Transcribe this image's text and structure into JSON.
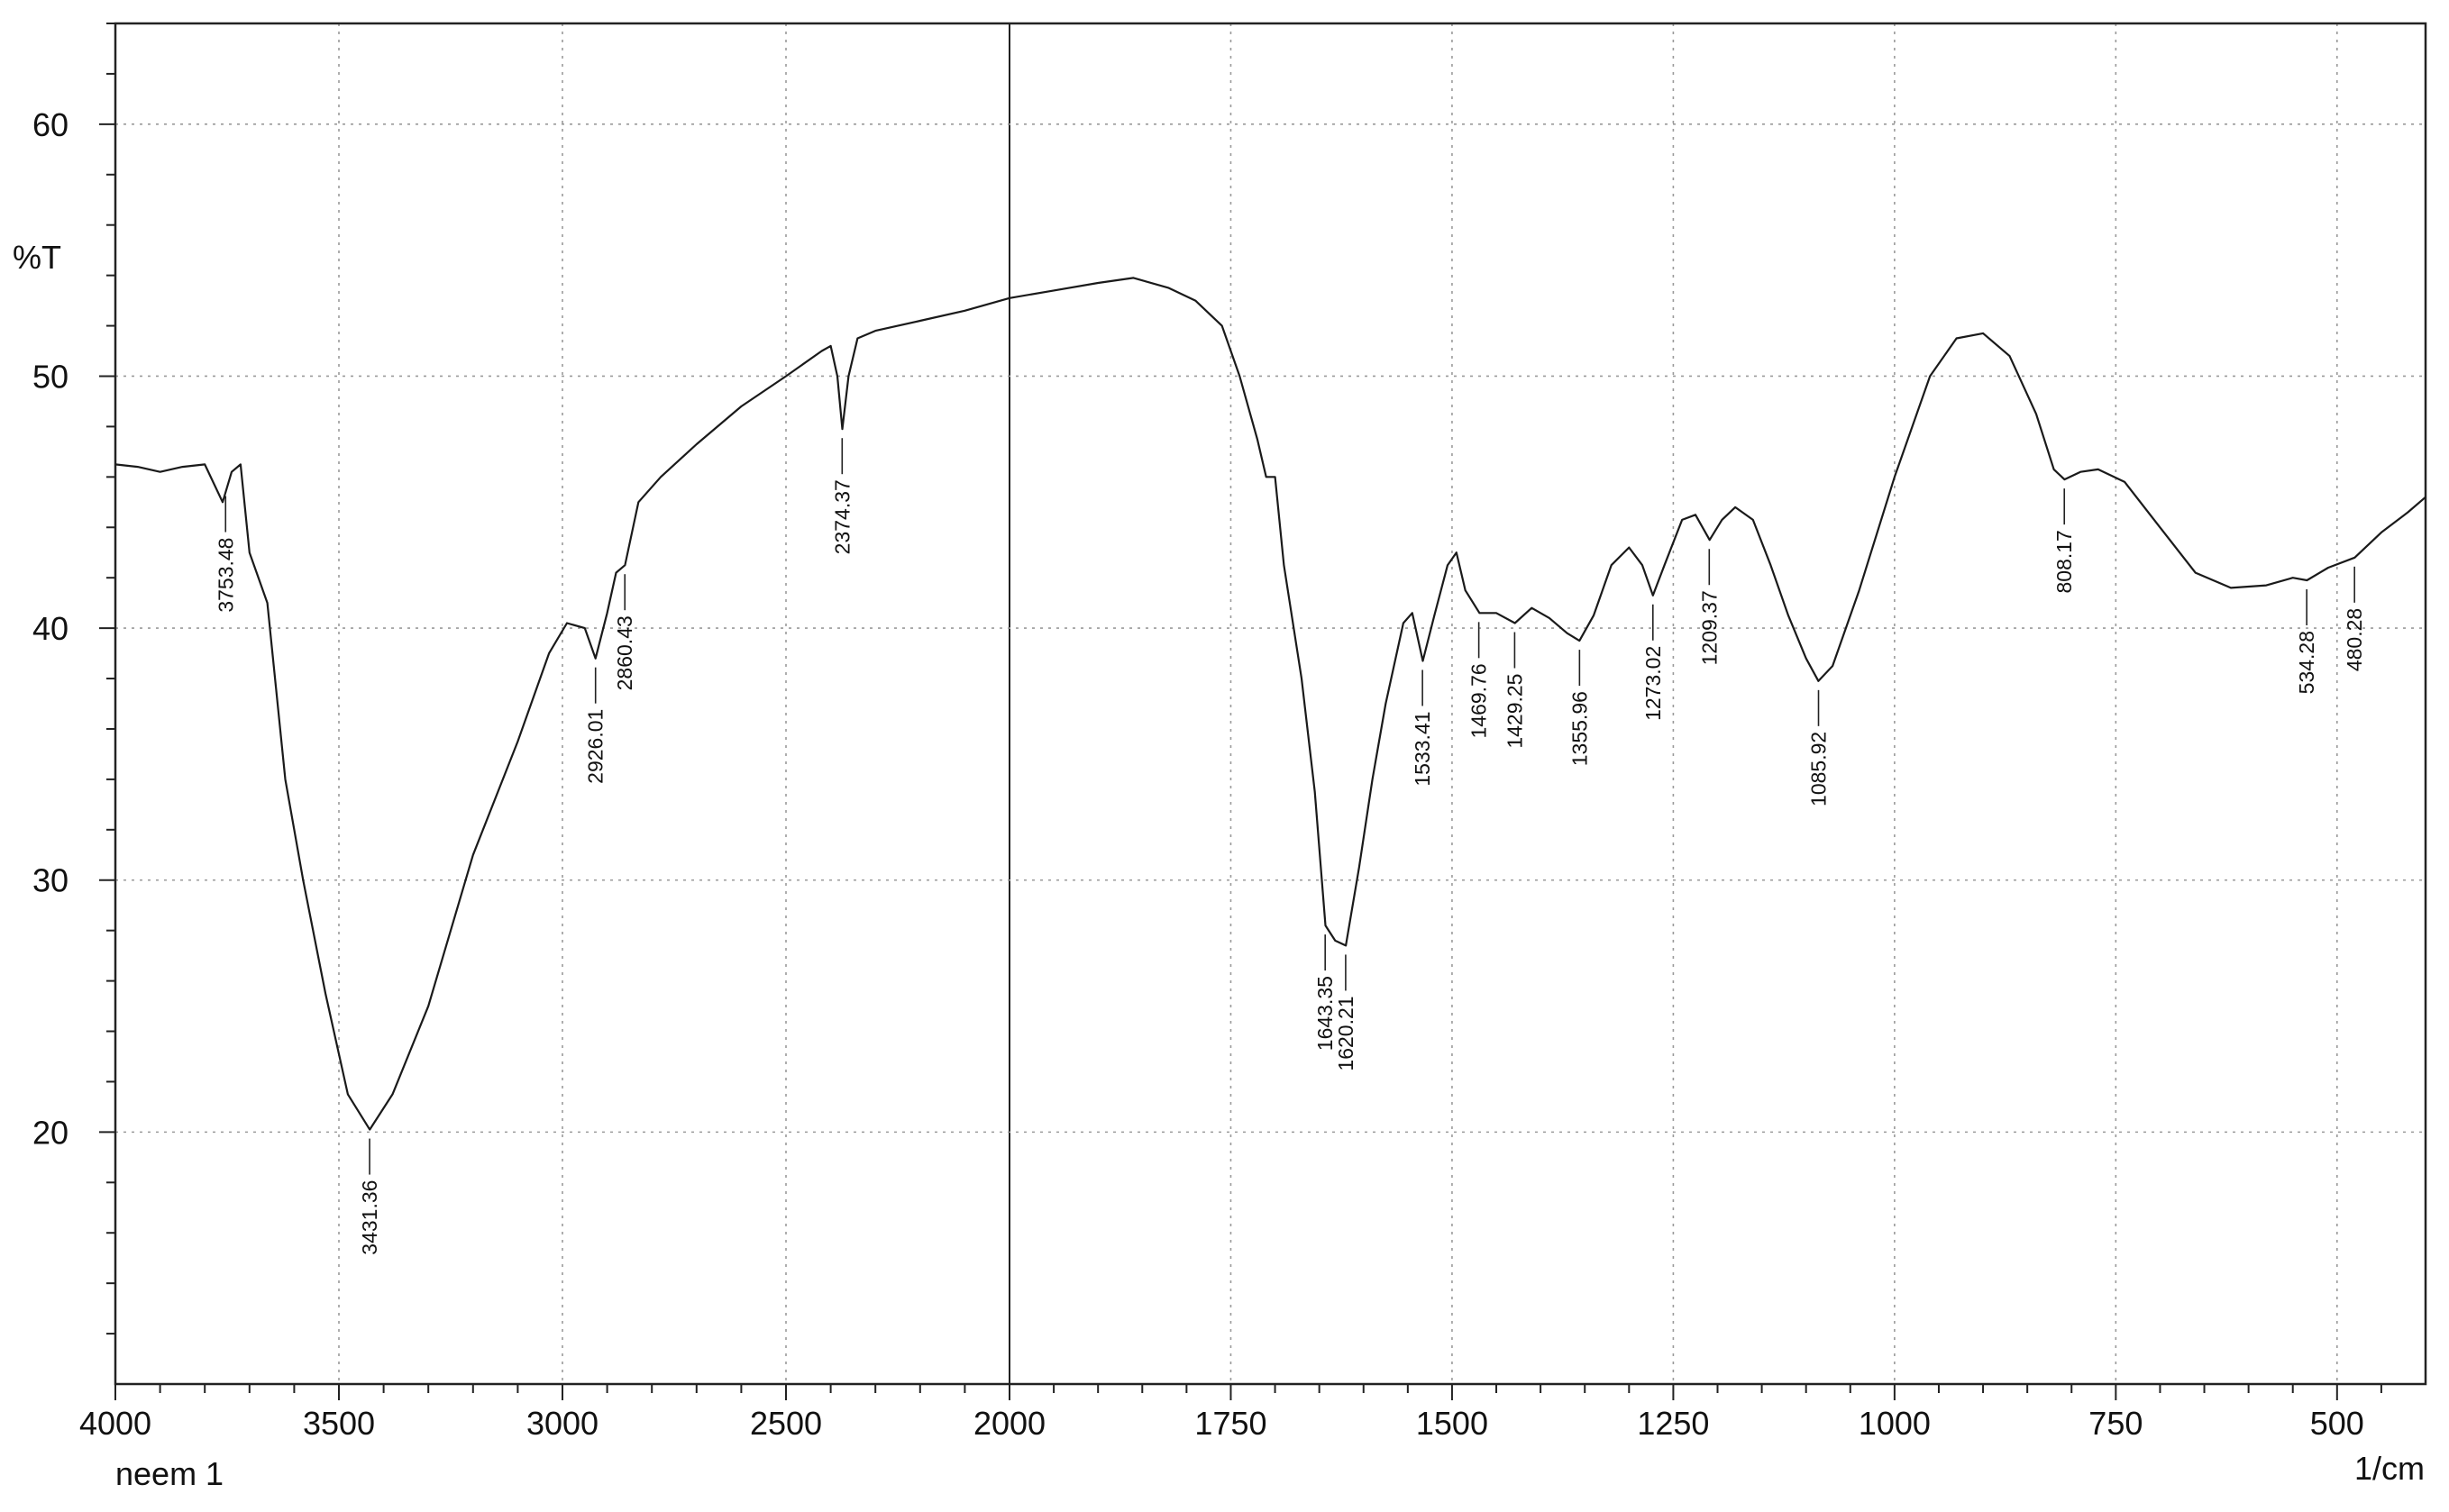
{
  "chart_data": {
    "type": "line",
    "sample_name": "neem 1",
    "xlabel": "1/cm",
    "ylabel": "%T",
    "x_reversed": true,
    "xlim": [
      4000,
      400
    ],
    "ylim": [
      10,
      64
    ],
    "grid": true,
    "x_tick_labels": [
      "4000",
      "3500",
      "3000",
      "2500",
      "2000",
      "1750",
      "1500",
      "1250",
      "1000",
      "750",
      "500"
    ],
    "x_tick_positions": [
      4000,
      3500,
      3000,
      2500,
      2000,
      1750,
      1500,
      1250,
      1000,
      750,
      500
    ],
    "y_tick_labels": [
      "20",
      "30",
      "40",
      "50",
      "60"
    ],
    "y_tick_values": [
      20,
      30,
      40,
      50,
      60
    ],
    "series": [
      {
        "points": [
          [
            4000,
            46.5
          ],
          [
            3950,
            46.4
          ],
          [
            3900,
            46.2
          ],
          [
            3850,
            46.4
          ],
          [
            3800,
            46.5
          ],
          [
            3760,
            45.0
          ],
          [
            3740,
            46.2
          ],
          [
            3720,
            46.5
          ],
          [
            3700,
            43.0
          ],
          [
            3660,
            41.0
          ],
          [
            3620,
            34.0
          ],
          [
            3580,
            30.0
          ],
          [
            3530,
            25.5
          ],
          [
            3480,
            21.5
          ],
          [
            3431,
            20.1
          ],
          [
            3380,
            21.5
          ],
          [
            3300,
            25.0
          ],
          [
            3200,
            31.0
          ],
          [
            3100,
            35.5
          ],
          [
            3030,
            39.0
          ],
          [
            2990,
            40.2
          ],
          [
            2950,
            40.0
          ],
          [
            2926,
            38.8
          ],
          [
            2900,
            40.6
          ],
          [
            2880,
            42.2
          ],
          [
            2860,
            42.5
          ],
          [
            2830,
            45.0
          ],
          [
            2780,
            46.0
          ],
          [
            2700,
            47.3
          ],
          [
            2600,
            48.8
          ],
          [
            2500,
            50.0
          ],
          [
            2420,
            51.0
          ],
          [
            2400,
            51.2
          ],
          [
            2385,
            50.0
          ],
          [
            2374,
            47.9
          ],
          [
            2360,
            50.0
          ],
          [
            2340,
            51.5
          ],
          [
            2300,
            51.8
          ],
          [
            2200,
            52.2
          ],
          [
            2100,
            52.6
          ],
          [
            2000,
            53.1
          ],
          [
            1950,
            53.4
          ],
          [
            1900,
            53.7
          ],
          [
            1860,
            53.9
          ],
          [
            1820,
            53.5
          ],
          [
            1790,
            53.0
          ],
          [
            1760,
            52.0
          ],
          [
            1740,
            50.0
          ],
          [
            1720,
            47.5
          ],
          [
            1710,
            46.0
          ],
          [
            1700,
            46.0
          ],
          [
            1690,
            42.5
          ],
          [
            1670,
            38.0
          ],
          [
            1655,
            33.5
          ],
          [
            1643,
            28.2
          ],
          [
            1632,
            27.6
          ],
          [
            1620,
            27.4
          ],
          [
            1605,
            30.5
          ],
          [
            1590,
            34.0
          ],
          [
            1575,
            37.0
          ],
          [
            1555,
            40.2
          ],
          [
            1545,
            40.6
          ],
          [
            1533,
            38.7
          ],
          [
            1520,
            40.5
          ],
          [
            1505,
            42.5
          ],
          [
            1495,
            43.0
          ],
          [
            1485,
            41.5
          ],
          [
            1469,
            40.6
          ],
          [
            1450,
            40.6
          ],
          [
            1429,
            40.2
          ],
          [
            1410,
            40.8
          ],
          [
            1390,
            40.4
          ],
          [
            1370,
            39.8
          ],
          [
            1356,
            39.5
          ],
          [
            1340,
            40.5
          ],
          [
            1320,
            42.5
          ],
          [
            1300,
            43.2
          ],
          [
            1285,
            42.5
          ],
          [
            1273,
            41.3
          ],
          [
            1260,
            42.5
          ],
          [
            1240,
            44.3
          ],
          [
            1225,
            44.5
          ],
          [
            1209,
            43.5
          ],
          [
            1195,
            44.3
          ],
          [
            1180,
            44.8
          ],
          [
            1160,
            44.3
          ],
          [
            1140,
            42.5
          ],
          [
            1120,
            40.5
          ],
          [
            1100,
            38.8
          ],
          [
            1086,
            37.9
          ],
          [
            1070,
            38.5
          ],
          [
            1040,
            41.5
          ],
          [
            1000,
            46.0
          ],
          [
            960,
            50.0
          ],
          [
            930,
            51.5
          ],
          [
            900,
            51.7
          ],
          [
            870,
            50.8
          ],
          [
            840,
            48.5
          ],
          [
            820,
            46.3
          ],
          [
            808,
            45.9
          ],
          [
            790,
            46.2
          ],
          [
            770,
            46.3
          ],
          [
            740,
            45.8
          ],
          [
            700,
            44.0
          ],
          [
            660,
            42.2
          ],
          [
            620,
            41.6
          ],
          [
            580,
            41.7
          ],
          [
            550,
            42.0
          ],
          [
            534,
            41.9
          ],
          [
            510,
            42.4
          ],
          [
            480,
            42.8
          ],
          [
            450,
            43.8
          ],
          [
            420,
            44.6
          ],
          [
            400,
            45.2
          ]
        ]
      }
    ],
    "annotations": [
      {
        "label": "3753.48",
        "x": 3753.48,
        "y": 45.6
      },
      {
        "label": "3431.36",
        "x": 3431.36,
        "y": 20.1
      },
      {
        "label": "2926.01",
        "x": 2926.01,
        "y": 38.8
      },
      {
        "label": "2860.43",
        "x": 2860.43,
        "y": 42.5
      },
      {
        "label": "2374.37",
        "x": 2374.37,
        "y": 47.9
      },
      {
        "label": "1643.35",
        "x": 1643.35,
        "y": 28.2
      },
      {
        "label": "1620.21",
        "x": 1620.21,
        "y": 27.4
      },
      {
        "label": "1533.41",
        "x": 1533.41,
        "y": 38.7
      },
      {
        "label": "1469.76",
        "x": 1469.76,
        "y": 40.6
      },
      {
        "label": "1429.25",
        "x": 1429.25,
        "y": 40.2
      },
      {
        "label": "1355.96",
        "x": 1355.96,
        "y": 39.5
      },
      {
        "label": "1273.02",
        "x": 1273.02,
        "y": 41.3
      },
      {
        "label": "1209.37",
        "x": 1209.37,
        "y": 43.5
      },
      {
        "label": "1085.92",
        "x": 1085.92,
        "y": 37.9
      },
      {
        "label": "808.17",
        "x": 808.17,
        "y": 45.9
      },
      {
        "label": "534.28",
        "x": 534.28,
        "y": 41.9
      },
      {
        "label": "480.28",
        "x": 480.28,
        "y": 42.8
      }
    ]
  }
}
